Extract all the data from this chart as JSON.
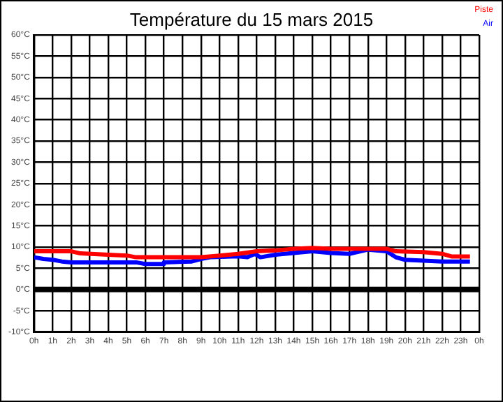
{
  "chart_data": {
    "type": "line",
    "title": "Température du 15 mars 2015",
    "xlim": [
      "2015-03-15T00:00",
      "2015-03-16T00:00"
    ],
    "xticks": [
      {
        "value": "2015-03-15T00:00",
        "label": "0h"
      },
      {
        "value": "2015-03-15T01:00",
        "label": "1h"
      },
      {
        "value": "2015-03-15T02:00",
        "label": "2h"
      },
      {
        "value": "2015-03-15T03:00",
        "label": "3h"
      },
      {
        "value": "2015-03-15T04:00",
        "label": "4h"
      },
      {
        "value": "2015-03-15T05:00",
        "label": "5h"
      },
      {
        "value": "2015-03-15T06:00",
        "label": "6h"
      },
      {
        "value": "2015-03-15T07:00",
        "label": "7h"
      },
      {
        "value": "2015-03-15T08:00",
        "label": "8h"
      },
      {
        "value": "2015-03-15T09:00",
        "label": "9h"
      },
      {
        "value": "2015-03-15T10:00",
        "label": "10h"
      },
      {
        "value": "2015-03-15T11:00",
        "label": "11h"
      },
      {
        "value": "2015-03-15T12:00",
        "label": "12h"
      },
      {
        "value": "2015-03-15T13:00",
        "label": "13h"
      },
      {
        "value": "2015-03-15T14:00",
        "label": "14h"
      },
      {
        "value": "2015-03-15T15:00",
        "label": "15h"
      },
      {
        "value": "2015-03-15T16:00",
        "label": "16h"
      },
      {
        "value": "2015-03-15T17:00",
        "label": "17h"
      },
      {
        "value": "2015-03-15T18:00",
        "label": "18h"
      },
      {
        "value": "2015-03-15T19:00",
        "label": "19h"
      },
      {
        "value": "2015-03-15T20:00",
        "label": "20h"
      },
      {
        "value": "2015-03-15T21:00",
        "label": "21h"
      },
      {
        "value": "2015-03-15T22:00",
        "label": "22h"
      },
      {
        "value": "2015-03-15T23:00",
        "label": "23h"
      },
      {
        "value": "2015-03-16T00:00",
        "label": "0h"
      }
    ],
    "ylim": [
      -10,
      60
    ],
    "yticks": [
      {
        "value": -10,
        "label": "-10°C"
      },
      {
        "value": -5,
        "label": "-5°C"
      },
      {
        "value": 0,
        "label": "0°C"
      },
      {
        "value": 5,
        "label": "5°C"
      },
      {
        "value": 10,
        "label": "10°C"
      },
      {
        "value": 15,
        "label": "15°C"
      },
      {
        "value": 20,
        "label": "20°C"
      },
      {
        "value": 25,
        "label": "25°C"
      },
      {
        "value": 30,
        "label": "30°C"
      },
      {
        "value": 35,
        "label": "35°C"
      },
      {
        "value": 40,
        "label": "40°C"
      },
      {
        "value": 45,
        "label": "45°C"
      },
      {
        "value": 50,
        "label": "50°C"
      },
      {
        "value": 55,
        "label": "55°C"
      },
      {
        "value": 60,
        "label": "60°C"
      }
    ],
    "grid": true,
    "legend": "top right",
    "marker": "none",
    "line_style": "solid",
    "ref_lines": [
      {
        "axis": "y",
        "value": 0,
        "color": "#000000"
      }
    ],
    "series": [
      {
        "name": "Piste",
        "color": "#ff0000",
        "x": [
          "2015-03-15T00:00",
          "2015-03-15T02:00",
          "2015-03-15T02:30",
          "2015-03-15T04:00",
          "2015-03-15T05:00",
          "2015-03-15T05:30",
          "2015-03-15T07:00",
          "2015-03-15T09:00",
          "2015-03-15T10:00",
          "2015-03-15T11:00",
          "2015-03-15T12:00",
          "2015-03-15T13:00",
          "2015-03-15T14:00",
          "2015-03-15T15:00",
          "2015-03-15T16:00",
          "2015-03-15T17:00",
          "2015-03-15T18:00",
          "2015-03-15T19:00",
          "2015-03-15T19:30",
          "2015-03-15T21:00",
          "2015-03-15T22:00",
          "2015-03-15T22:30",
          "2015-03-15T23:30"
        ],
        "values": [
          9,
          9,
          8.5,
          8.2,
          8,
          7.6,
          7.6,
          7.6,
          8,
          8.4,
          9,
          9.2,
          9.6,
          9.8,
          9.6,
          9.6,
          9.6,
          9.6,
          9,
          8.8,
          8.4,
          7.8,
          7.8
        ]
      },
      {
        "name": "Air",
        "color": "#0000ff",
        "x": [
          "2015-03-15T00:00",
          "2015-03-15T00:30",
          "2015-03-15T01:00",
          "2015-03-15T01:30",
          "2015-03-15T02:00",
          "2015-03-15T05:30",
          "2015-03-15T06:00",
          "2015-03-15T07:00",
          "2015-03-15T07:00",
          "2015-03-15T08:30",
          "2015-03-15T09:00",
          "2015-03-15T09:30",
          "2015-03-15T11:00",
          "2015-03-15T11:30",
          "2015-03-15T11:54",
          "2015-03-15T12:12",
          "2015-03-15T13:00",
          "2015-03-15T14:00",
          "2015-03-15T15:00",
          "2015-03-15T16:00",
          "2015-03-15T17:00",
          "2015-03-15T18:00",
          "2015-03-15T19:00",
          "2015-03-15T19:30",
          "2015-03-15T20:00",
          "2015-03-15T21:00",
          "2015-03-15T22:00",
          "2015-03-15T23:30"
        ],
        "values": [
          7.6,
          7.2,
          7,
          6.6,
          6.4,
          6.4,
          6,
          6,
          6.4,
          6.6,
          7.2,
          7.6,
          7.8,
          7.6,
          8.4,
          7.6,
          8.2,
          8.6,
          9,
          8.6,
          8.4,
          9.4,
          9,
          7.6,
          7,
          6.8,
          6.6,
          6.6
        ]
      }
    ]
  }
}
